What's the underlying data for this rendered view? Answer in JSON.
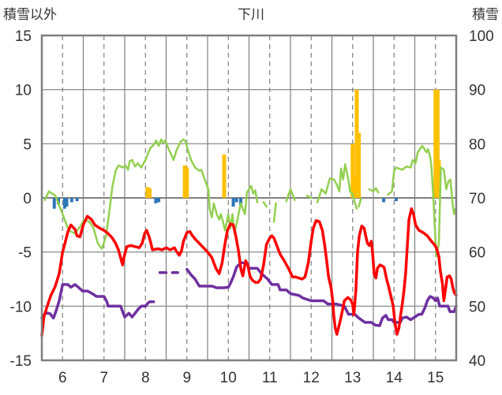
{
  "chart_data": {
    "type": "line",
    "title": "下川",
    "ylabel_left": "積雪以外",
    "ylabel_right": "積雪",
    "x_ticks": [
      "6",
      "7",
      "8",
      "9",
      "10",
      "11",
      "12",
      "13",
      "14",
      "15"
    ],
    "xlim": [
      5.5,
      15.5
    ],
    "ylim_left": [
      -15,
      15
    ],
    "y_ticks_left": [
      "15",
      "10",
      "5",
      "0",
      "-5",
      "-10",
      "-15"
    ],
    "ylim_right": [
      40,
      100
    ],
    "y_ticks_right": [
      "100",
      "90",
      "80",
      "70",
      "60",
      "50",
      "40"
    ],
    "grid": true,
    "colors": {
      "frame": "#7f7f7f",
      "grid": "#7f7f7f",
      "green": "#92d050",
      "red": "#ff0000",
      "purple": "#7030a0",
      "orange": "#ffc000",
      "blue": "#2e75b6"
    },
    "snow_depth_right_axis": [
      [
        5.5,
        47.8
      ],
      [
        5.6,
        48.8
      ],
      [
        5.7,
        48.6
      ],
      [
        5.78,
        47.8
      ],
      [
        5.83,
        48.8
      ],
      [
        5.92,
        51
      ],
      [
        6.0,
        54
      ],
      [
        6.13,
        54
      ],
      [
        6.2,
        53.5
      ],
      [
        6.3,
        54
      ],
      [
        6.38,
        53.5
      ],
      [
        6.48,
        52.8
      ],
      [
        6.6,
        52.8
      ],
      [
        6.72,
        52.3
      ],
      [
        6.82,
        51.8
      ],
      [
        7.0,
        51.8
      ],
      [
        7.07,
        50.8
      ],
      [
        7.1,
        50
      ],
      [
        7.4,
        50
      ],
      [
        7.45,
        49
      ],
      [
        7.5,
        48
      ],
      [
        7.6,
        48.7
      ],
      [
        7.68,
        48
      ],
      [
        7.75,
        48.7
      ],
      [
        7.82,
        49.4
      ],
      [
        7.9,
        50
      ],
      [
        8.0,
        50
      ],
      [
        8.05,
        50.5
      ],
      [
        8.1,
        50.8
      ],
      [
        8.2,
        50.8
      ]
    ],
    "snow_depth_right_axis_2": [
      [
        8.35,
        56.2
      ],
      [
        8.5,
        56.2
      ]
    ],
    "snow_depth_right_axis_3": [
      [
        8.65,
        56.2
      ],
      [
        8.78,
        56.2
      ]
    ],
    "snow_depth_right_axis_4": [
      [
        9.0,
        56.8
      ],
      [
        9.1,
        55.8
      ],
      [
        9.2,
        55
      ],
      [
        9.3,
        53.7
      ],
      [
        9.6,
        53.7
      ],
      [
        9.72,
        53.4
      ],
      [
        9.9,
        53.4
      ],
      [
        10.0,
        53.5
      ],
      [
        10.05,
        54.2
      ],
      [
        10.12,
        55.4
      ],
      [
        10.2,
        57.2
      ],
      [
        10.3,
        58
      ],
      [
        10.45,
        58
      ],
      [
        10.5,
        57
      ],
      [
        10.7,
        57
      ],
      [
        10.8,
        56
      ],
      [
        10.95,
        55
      ],
      [
        11.05,
        54
      ],
      [
        11.2,
        54
      ],
      [
        11.25,
        53
      ],
      [
        11.4,
        53
      ],
      [
        11.5,
        52.3
      ],
      [
        11.7,
        52
      ],
      [
        11.8,
        51.5
      ],
      [
        12.0,
        51
      ],
      [
        12.3,
        51
      ],
      [
        12.4,
        50.4
      ],
      [
        12.6,
        50.4
      ],
      [
        12.8,
        50
      ],
      [
        12.9,
        48.5
      ],
      [
        13.05,
        48.5
      ],
      [
        13.15,
        47.8
      ],
      [
        13.3,
        47
      ],
      [
        13.45,
        47
      ],
      [
        13.55,
        46.5
      ],
      [
        13.65,
        46.4
      ],
      [
        13.72,
        47.8
      ],
      [
        13.8,
        48.3
      ],
      [
        13.86,
        47.5
      ],
      [
        13.95,
        47.5
      ],
      [
        14.0,
        47
      ],
      [
        14.15,
        47
      ],
      [
        14.2,
        47.8
      ],
      [
        14.3,
        48
      ],
      [
        14.4,
        47.5
      ],
      [
        14.6,
        48.5
      ],
      [
        14.67,
        48.5
      ],
      [
        14.75,
        49.8
      ],
      [
        14.8,
        51
      ],
      [
        14.87,
        51.8
      ],
      [
        14.95,
        51.5
      ],
      [
        15.0,
        51
      ],
      [
        15.05,
        51.5
      ],
      [
        15.1,
        50
      ],
      [
        15.3,
        50
      ],
      [
        15.35,
        49
      ],
      [
        15.45,
        49
      ],
      [
        15.5,
        50
      ]
    ],
    "green_series": [
      [
        5.57,
        -0.2
      ],
      [
        5.62,
        0.2
      ],
      [
        5.67,
        0.6
      ],
      [
        5.83,
        0.2
      ],
      [
        5.95,
        -1
      ],
      [
        6.05,
        -2
      ],
      [
        6.15,
        -3
      ],
      [
        6.3,
        -3.3
      ],
      [
        6.45,
        -2.5
      ],
      [
        6.52,
        -2
      ],
      [
        6.65,
        -2.2
      ],
      [
        6.75,
        -2.8
      ],
      [
        6.85,
        -4.2
      ],
      [
        6.95,
        -4.7
      ],
      [
        7.05,
        -3.5
      ],
      [
        7.12,
        -1.5
      ],
      [
        7.2,
        1
      ],
      [
        7.28,
        2.5
      ],
      [
        7.35,
        3
      ],
      [
        7.45,
        2.8
      ],
      [
        7.52,
        3
      ],
      [
        7.58,
        2.6
      ],
      [
        7.62,
        3.4
      ],
      [
        7.68,
        3.5
      ],
      [
        7.75,
        2.9
      ],
      [
        7.82,
        3.2
      ],
      [
        7.9,
        2.8
      ],
      [
        8.0,
        3.5
      ],
      [
        8.05,
        4
      ],
      [
        8.12,
        4.6
      ],
      [
        8.2,
        4.9
      ],
      [
        8.26,
        5.3
      ],
      [
        8.32,
        4.8
      ],
      [
        8.38,
        5.4
      ],
      [
        8.42,
        5.1
      ],
      [
        8.48,
        5.3
      ],
      [
        8.55,
        4.6
      ],
      [
        8.6,
        4.2
      ],
      [
        8.68,
        3.5
      ],
      [
        8.75,
        4.4
      ],
      [
        8.8,
        4.8
      ],
      [
        8.85,
        5.2
      ],
      [
        8.92,
        5.4
      ],
      [
        8.97,
        5.2
      ],
      [
        9.02,
        4.5
      ],
      [
        9.1,
        3.5
      ],
      [
        9.2,
        2.8
      ],
      [
        9.3,
        2.5
      ],
      [
        9.35,
        2.6
      ],
      [
        9.45,
        1.5
      ],
      [
        9.52,
        0.8
      ],
      [
        9.55,
        -1
      ],
      [
        9.6,
        -1.8
      ],
      [
        9.65,
        -0.5
      ],
      [
        9.72,
        -1.5
      ],
      [
        9.78,
        -2
      ],
      [
        9.82,
        -1.5
      ],
      [
        9.87,
        -2.2
      ],
      [
        9.92,
        -3
      ],
      [
        10.0,
        -1.5
      ],
      [
        10.05,
        -2.8
      ],
      [
        10.1,
        -1.5
      ],
      [
        10.15,
        -3.3
      ],
      [
        10.22,
        -2
      ],
      [
        10.3,
        -0.5
      ],
      [
        10.4,
        -1.5
      ],
      [
        10.45,
        0.5
      ],
      [
        10.5,
        0.8
      ],
      [
        10.55,
        1.1
      ],
      [
        10.6,
        0.4
      ],
      [
        10.65,
        0.7
      ],
      [
        10.7,
        -0.4
      ]
    ],
    "green_series_2": [
      [
        10.85,
        -0.4
      ],
      [
        10.92,
        -0.8
      ]
    ],
    "green_series_3": [
      [
        11.1,
        -2.2
      ],
      [
        11.15,
        -0.5
      ]
    ],
    "green_series_4": [
      [
        11.4,
        -0.3
      ],
      [
        11.5,
        0.8
      ],
      [
        11.6,
        -0.2
      ]
    ],
    "green_series_5": [
      [
        11.9,
        0.2
      ],
      [
        12.0,
        0
      ]
    ],
    "green_series_6": [
      [
        12.15,
        -0.4
      ],
      [
        12.25,
        0.8
      ],
      [
        12.35,
        0.4
      ],
      [
        12.45,
        1.8
      ],
      [
        12.55,
        1.7
      ],
      [
        12.62,
        1.2
      ],
      [
        12.68,
        0.6
      ],
      [
        12.72,
        2.7
      ],
      [
        12.77,
        1.7
      ],
      [
        12.82,
        3.1
      ],
      [
        12.88,
        2
      ],
      [
        12.94,
        0.6
      ],
      [
        13.0,
        0.3
      ],
      [
        13.05,
        -0.4
      ],
      [
        13.1,
        -1
      ]
    ],
    "green_series_7": [
      [
        13.15,
        -0.8
      ],
      [
        13.2,
        -0.1
      ]
    ],
    "green_series_8": [
      [
        13.4,
        0.8
      ],
      [
        13.5,
        0.6
      ],
      [
        13.56,
        0.9
      ],
      [
        13.62,
        0.5
      ]
    ],
    "green_series_9": [
      [
        13.85,
        0.3
      ],
      [
        13.95,
        0.6
      ],
      [
        14.0,
        2.5
      ],
      [
        14.05,
        2.8
      ],
      [
        14.12,
        2.7
      ],
      [
        14.2,
        2.6
      ],
      [
        14.3,
        2.9
      ],
      [
        14.4,
        2.8
      ],
      [
        14.45,
        3.5
      ],
      [
        14.52,
        3.2
      ],
      [
        14.57,
        4.2
      ],
      [
        14.62,
        4.5
      ],
      [
        14.68,
        4.8
      ],
      [
        14.72,
        4.6
      ],
      [
        14.78,
        4.2
      ],
      [
        14.82,
        4.5
      ],
      [
        14.87,
        3.8
      ],
      [
        14.9,
        3
      ],
      [
        14.95,
        0
      ],
      [
        14.98,
        -2.5
      ],
      [
        15.02,
        -5.4
      ],
      [
        15.08,
        -4.2
      ],
      [
        15.13,
        2.8
      ],
      [
        15.2,
        2.6
      ],
      [
        15.26,
        0.8
      ],
      [
        15.31,
        1.5
      ],
      [
        15.36,
        1.7
      ],
      [
        15.42,
        -0.8
      ],
      [
        15.45,
        -1.5
      ],
      [
        15.48,
        -1
      ]
    ],
    "red_series": [
      [
        5.5,
        -12.7
      ],
      [
        5.55,
        -11
      ],
      [
        5.63,
        -10
      ],
      [
        5.72,
        -9
      ],
      [
        5.82,
        -8.2
      ],
      [
        5.92,
        -7
      ],
      [
        6.0,
        -5
      ],
      [
        6.05,
        -4.3
      ],
      [
        6.13,
        -3.1
      ],
      [
        6.2,
        -2.5
      ],
      [
        6.3,
        -2.9
      ],
      [
        6.35,
        -3.5
      ],
      [
        6.42,
        -3.6
      ],
      [
        6.5,
        -2.5
      ],
      [
        6.6,
        -1.7
      ],
      [
        6.7,
        -2
      ],
      [
        6.78,
        -2.5
      ],
      [
        6.9,
        -2.8
      ],
      [
        7.0,
        -3
      ],
      [
        7.1,
        -3.3
      ],
      [
        7.2,
        -3.7
      ],
      [
        7.28,
        -4.2
      ],
      [
        7.35,
        -4.8
      ],
      [
        7.42,
        -5.8
      ],
      [
        7.45,
        -6.2
      ],
      [
        7.48,
        -5.5
      ],
      [
        7.55,
        -4.5
      ],
      [
        7.65,
        -4.4
      ],
      [
        7.75,
        -4.5
      ],
      [
        7.85,
        -4.6
      ],
      [
        7.92,
        -4.2
      ],
      [
        7.98,
        -3.3
      ],
      [
        8.03,
        -3
      ],
      [
        8.08,
        -3.5
      ],
      [
        8.12,
        -4
      ],
      [
        8.17,
        -4.8
      ],
      [
        8.3,
        -4.7
      ],
      [
        8.4,
        -4.8
      ],
      [
        8.5,
        -4.6
      ],
      [
        8.6,
        -4.8
      ],
      [
        8.7,
        -4.6
      ],
      [
        8.76,
        -5
      ],
      [
        8.82,
        -5.3
      ],
      [
        8.87,
        -4.9
      ],
      [
        8.92,
        -4
      ],
      [
        9.0,
        -3.2
      ],
      [
        9.07,
        -3.1
      ],
      [
        9.12,
        -3.4
      ],
      [
        9.2,
        -3.8
      ],
      [
        9.3,
        -4.2
      ],
      [
        9.4,
        -4.6
      ],
      [
        9.5,
        -5
      ],
      [
        9.6,
        -5.5
      ],
      [
        9.7,
        -6.5
      ],
      [
        9.78,
        -7
      ],
      [
        9.85,
        -6
      ],
      [
        9.92,
        -4.2
      ],
      [
        9.98,
        -3
      ],
      [
        10.05,
        -2.4
      ],
      [
        10.12,
        -2.5
      ],
      [
        10.18,
        -3.5
      ],
      [
        10.25,
        -5
      ],
      [
        10.3,
        -6.5
      ],
      [
        10.35,
        -7.2
      ],
      [
        10.42,
        -5.8
      ],
      [
        10.47,
        -6.2
      ],
      [
        10.52,
        -7.2
      ],
      [
        10.58,
        -7.6
      ],
      [
        10.65,
        -7.8
      ],
      [
        10.72,
        -7.8
      ],
      [
        10.78,
        -7.5
      ],
      [
        10.85,
        -6.2
      ],
      [
        10.92,
        -4.3
      ],
      [
        11.0,
        -3.7
      ],
      [
        11.05,
        -3.5
      ],
      [
        11.1,
        -3.7
      ],
      [
        11.18,
        -4.5
      ],
      [
        11.25,
        -5.2
      ],
      [
        11.35,
        -5.8
      ],
      [
        11.45,
        -6.5
      ],
      [
        11.55,
        -7.3
      ],
      [
        11.62,
        -7.3
      ],
      [
        11.7,
        -7.4
      ],
      [
        11.78,
        -7.5
      ],
      [
        11.85,
        -7.3
      ],
      [
        11.93,
        -6
      ],
      [
        12.0,
        -4
      ],
      [
        12.05,
        -2.8
      ],
      [
        12.12,
        -2.1
      ],
      [
        12.2,
        -2.2
      ],
      [
        12.27,
        -3
      ],
      [
        12.33,
        -4.5
      ],
      [
        12.38,
        -6
      ],
      [
        12.42,
        -7.3
      ],
      [
        12.48,
        -8.3
      ],
      [
        12.52,
        -9.5
      ],
      [
        12.55,
        -11
      ],
      [
        12.58,
        -12
      ],
      [
        12.62,
        -12.6
      ],
      [
        12.66,
        -12
      ],
      [
        12.72,
        -11
      ],
      [
        12.8,
        -9.5
      ],
      [
        12.88,
        -9.2
      ],
      [
        12.95,
        -9.4
      ],
      [
        13.0,
        -9.8
      ],
      [
        13.03,
        -10.8
      ],
      [
        13.08,
        -8.5
      ],
      [
        13.12,
        -5
      ],
      [
        13.16,
        -3.5
      ],
      [
        13.22,
        -2.6
      ],
      [
        13.28,
        -2.8
      ],
      [
        13.32,
        -3.6
      ],
      [
        13.36,
        -4.2
      ],
      [
        13.4,
        -4.4
      ],
      [
        13.45,
        -4
      ],
      [
        13.48,
        -5
      ],
      [
        13.52,
        -7
      ],
      [
        13.56,
        -7.4
      ],
      [
        13.6,
        -6.5
      ],
      [
        13.66,
        -6.2
      ],
      [
        13.72,
        -6.3
      ],
      [
        13.76,
        -6.4
      ],
      [
        13.82,
        -7.5
      ],
      [
        13.87,
        -8.2
      ],
      [
        13.93,
        -9.2
      ],
      [
        13.98,
        -10
      ],
      [
        14.02,
        -11.5
      ],
      [
        14.07,
        -12.6
      ],
      [
        14.12,
        -12
      ],
      [
        14.16,
        -10.8
      ],
      [
        14.2,
        -9.8
      ],
      [
        14.24,
        -8.5
      ],
      [
        14.28,
        -7
      ],
      [
        14.32,
        -4.5
      ],
      [
        14.36,
        -2
      ],
      [
        14.42,
        -1
      ],
      [
        14.47,
        -1.5
      ],
      [
        14.52,
        -2.5
      ],
      [
        14.6,
        -3
      ],
      [
        14.7,
        -3.2
      ],
      [
        14.8,
        -3.5
      ],
      [
        14.9,
        -4
      ],
      [
        14.97,
        -4.3
      ],
      [
        15.02,
        -4.6
      ],
      [
        15.08,
        -5.4
      ],
      [
        15.12,
        -6.8
      ],
      [
        15.17,
        -8
      ],
      [
        15.2,
        -9.5
      ],
      [
        15.25,
        -8.2
      ],
      [
        15.28,
        -7.3
      ],
      [
        15.34,
        -7.2
      ],
      [
        15.38,
        -7.5
      ],
      [
        15.42,
        -8.3
      ],
      [
        15.46,
        -8.8
      ],
      [
        15.5,
        -9
      ]
    ],
    "yellow_bars": [
      [
        8.05,
        1
      ],
      [
        8.1,
        0.9
      ],
      [
        8.95,
        3
      ],
      [
        9.0,
        2.8
      ],
      [
        9.9,
        4
      ],
      [
        13.0,
        5
      ],
      [
        13.07,
        2
      ],
      [
        13.1,
        10
      ],
      [
        13.15,
        6
      ],
      [
        14.97,
        1
      ],
      [
        15.0,
        10
      ],
      [
        15.05,
        10
      ],
      [
        15.08,
        3.5
      ]
    ],
    "blue_bars": [
      [
        5.8,
        -1
      ],
      [
        5.9,
        -0.6
      ],
      [
        6.05,
        -1
      ],
      [
        6.1,
        -0.8
      ],
      [
        6.22,
        -0.4
      ],
      [
        6.35,
        -0.3
      ],
      [
        8.25,
        -0.5
      ],
      [
        8.32,
        -0.4
      ],
      [
        10.12,
        -0.8
      ],
      [
        10.2,
        -0.4
      ],
      [
        10.3,
        -0.7
      ],
      [
        13.75,
        -0.4
      ],
      [
        14.05,
        -0.3
      ]
    ]
  }
}
